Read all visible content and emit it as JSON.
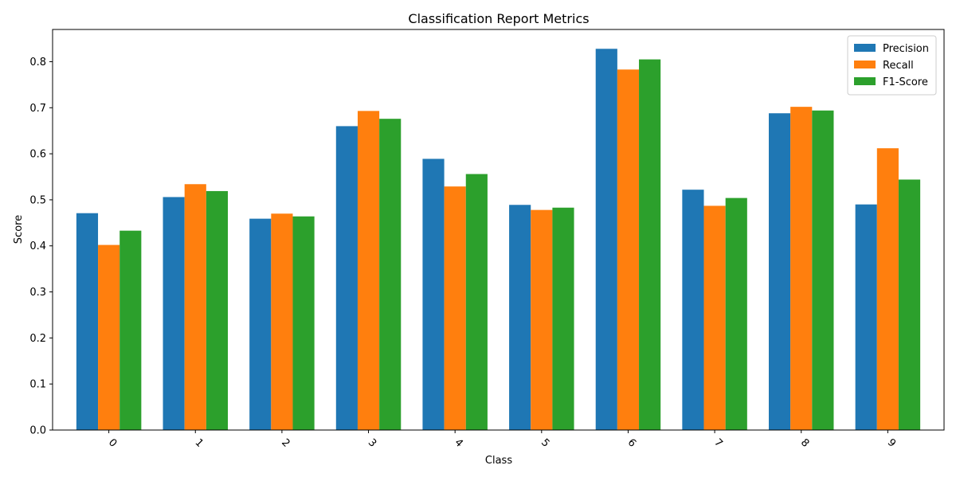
{
  "chart_data": {
    "type": "bar",
    "title": "Classification Report Metrics",
    "xlabel": "Class",
    "ylabel": "Score",
    "categories": [
      "0",
      "1",
      "2",
      "3",
      "4",
      "5",
      "6",
      "7",
      "8",
      "9"
    ],
    "ylim": [
      0,
      0.87
    ],
    "yticks": [
      "0.0",
      "0.1",
      "0.2",
      "0.3",
      "0.4",
      "0.5",
      "0.6",
      "0.7",
      "0.8"
    ],
    "ytick_values": [
      0.0,
      0.1,
      0.2,
      0.3,
      0.4,
      0.5,
      0.6,
      0.7,
      0.8
    ],
    "grid": false,
    "legend_position": "top-right",
    "series": [
      {
        "name": "Precision",
        "color": "#1f77b4",
        "values": [
          0.471,
          0.506,
          0.459,
          0.66,
          0.589,
          0.489,
          0.828,
          0.522,
          0.688,
          0.49
        ]
      },
      {
        "name": "Recall",
        "color": "#ff7f0e",
        "values": [
          0.402,
          0.534,
          0.47,
          0.693,
          0.529,
          0.478,
          0.783,
          0.487,
          0.702,
          0.612
        ]
      },
      {
        "name": "F1-Score",
        "color": "#2ca02c",
        "values": [
          0.433,
          0.519,
          0.464,
          0.676,
          0.556,
          0.483,
          0.805,
          0.504,
          0.694,
          0.544
        ]
      }
    ]
  }
}
